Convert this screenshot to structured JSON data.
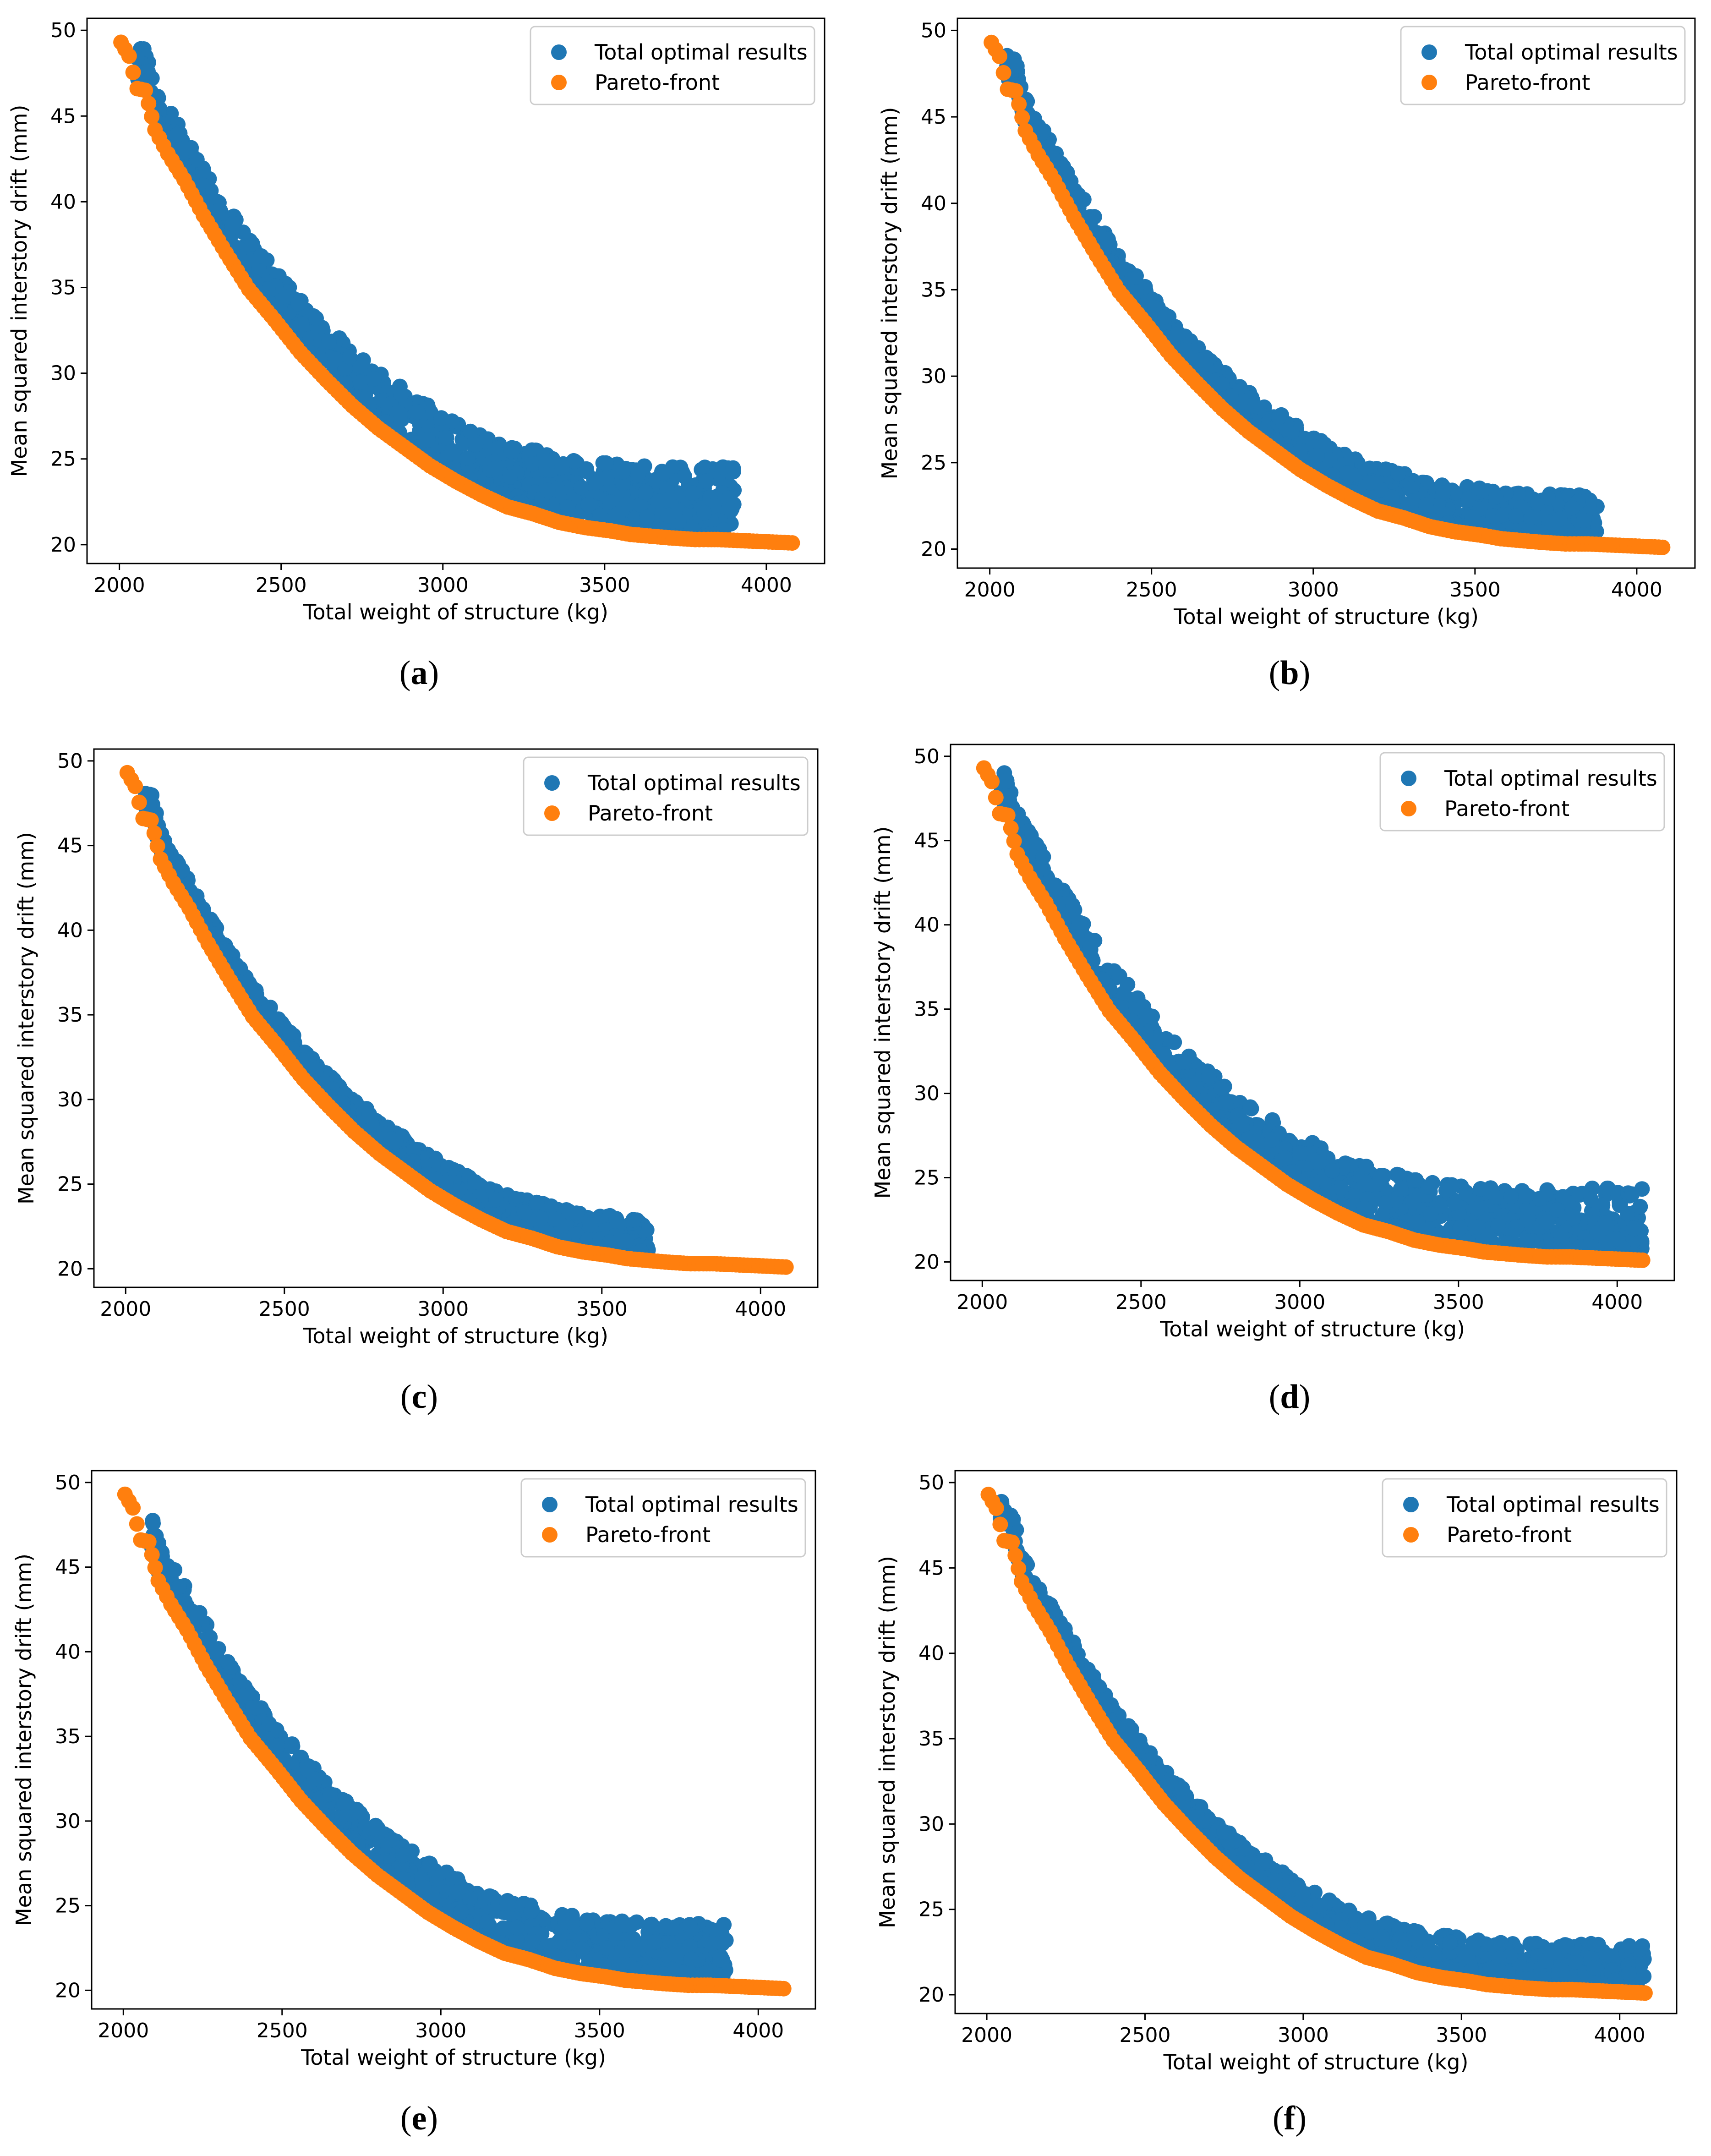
{
  "figure": {
    "colors": {
      "optimal": "#1f77b4",
      "pareto": "#ff7f0e",
      "axis": "#000000",
      "background": "#ffffff"
    },
    "legend_labels": {
      "optimal": "Total optimal results",
      "pareto": "Pareto-front"
    }
  },
  "chart_data": [
    {
      "type": "scatter",
      "panel": "a",
      "caption_open": "(",
      "caption_letter": "a",
      "caption_close": ")",
      "xlabel": "Total weight of structure (kg)",
      "ylabel": "Mean squared interstory drift (mm)",
      "xlim": [
        1900,
        4180
      ],
      "ylim": [
        18.9,
        50.7
      ],
      "xticks": [
        2000,
        2500,
        3000,
        3500,
        4000
      ],
      "yticks": [
        20,
        25,
        30,
        35,
        40,
        45,
        50
      ],
      "legend": "top-right",
      "series": [
        {
          "name": "Total optimal results",
          "color": "#1f77b4",
          "x_range": [
            2050,
            3900
          ],
          "spread": 4.0
        },
        {
          "name": "Pareto-front",
          "color": "#ff7f0e",
          "x": [
            2005,
            2030,
            2055,
            2080,
            2110,
            2150,
            2200,
            2260,
            2330,
            2400,
            2480,
            2560,
            2640,
            2720,
            2800,
            2880,
            2960,
            3040,
            3120,
            3200,
            3280,
            3360,
            3440,
            3520,
            3580,
            3640,
            3700,
            3780,
            3820,
            3850,
            4080
          ],
          "y": [
            49.3,
            48.5,
            46.6,
            46.5,
            44.2,
            42.8,
            41.3,
            39.2,
            37.0,
            34.9,
            33.1,
            31.2,
            29.6,
            28.1,
            26.8,
            25.7,
            24.6,
            23.7,
            22.9,
            22.2,
            21.8,
            21.3,
            21.0,
            20.8,
            20.6,
            20.5,
            20.4,
            20.3,
            20.3,
            20.3,
            20.1
          ]
        }
      ]
    },
    {
      "type": "scatter",
      "panel": "b",
      "caption_open": "(",
      "caption_letter": "b",
      "caption_close": ")",
      "xlabel": "Total weight of structure (kg)",
      "ylabel": "Mean squared interstory drift (mm)",
      "xlim": [
        1900,
        4180
      ],
      "ylim": [
        18.9,
        50.7
      ],
      "xticks": [
        2000,
        2500,
        3000,
        3500,
        4000
      ],
      "yticks": [
        20,
        25,
        30,
        35,
        40,
        45,
        50
      ],
      "legend": "top-right",
      "series": [
        {
          "name": "Total optimal results",
          "color": "#1f77b4",
          "x_range": [
            2050,
            3880
          ],
          "spread": 2.6
        },
        {
          "name": "Pareto-front",
          "color": "#ff7f0e",
          "x": [
            2005,
            2030,
            2055,
            2080,
            2110,
            2150,
            2200,
            2260,
            2330,
            2400,
            2480,
            2560,
            2640,
            2720,
            2800,
            2880,
            2960,
            3040,
            3120,
            3200,
            3280,
            3360,
            3440,
            3520,
            3580,
            3640,
            3700,
            3780,
            3820,
            3850,
            4080
          ],
          "y": [
            49.3,
            48.5,
            46.6,
            46.5,
            44.2,
            42.8,
            41.3,
            39.2,
            37.0,
            34.9,
            33.1,
            31.2,
            29.6,
            28.1,
            26.8,
            25.7,
            24.6,
            23.7,
            22.9,
            22.2,
            21.8,
            21.3,
            21.0,
            20.8,
            20.6,
            20.5,
            20.4,
            20.3,
            20.3,
            20.3,
            20.1
          ]
        }
      ]
    },
    {
      "type": "scatter",
      "panel": "c",
      "caption_open": "(",
      "caption_letter": "c",
      "caption_close": ")",
      "xlabel": "Total weight of structure (kg)",
      "ylabel": "Mean squared interstory drift (mm)",
      "xlim": [
        1900,
        4180
      ],
      "ylim": [
        18.9,
        50.7
      ],
      "xticks": [
        2000,
        2500,
        3000,
        3500,
        4000
      ],
      "yticks": [
        20,
        25,
        30,
        35,
        40,
        45,
        50
      ],
      "legend": "top-right",
      "series": [
        {
          "name": "Total optimal results",
          "color": "#1f77b4",
          "x_range": [
            2060,
            3650
          ],
          "spread": 2.2
        },
        {
          "name": "Pareto-front",
          "color": "#ff7f0e",
          "x": [
            2005,
            2030,
            2055,
            2080,
            2110,
            2150,
            2200,
            2260,
            2330,
            2400,
            2480,
            2560,
            2640,
            2720,
            2800,
            2880,
            2960,
            3040,
            3120,
            3200,
            3280,
            3360,
            3440,
            3520,
            3580,
            3640,
            3700,
            3780,
            3820,
            3850,
            4080
          ],
          "y": [
            49.3,
            48.5,
            46.6,
            46.5,
            44.2,
            42.8,
            41.3,
            39.2,
            37.0,
            34.9,
            33.1,
            31.2,
            29.6,
            28.1,
            26.8,
            25.7,
            24.6,
            23.7,
            22.9,
            22.2,
            21.8,
            21.3,
            21.0,
            20.8,
            20.6,
            20.5,
            20.4,
            20.3,
            20.3,
            20.3,
            20.1
          ]
        }
      ]
    },
    {
      "type": "scatter",
      "panel": "d",
      "caption_open": "(",
      "caption_letter": "d",
      "caption_close": ")",
      "xlabel": "Total weight of structure (kg)",
      "ylabel": "Mean squared interstory drift (mm)",
      "xlim": [
        1900,
        4180
      ],
      "ylim": [
        18.9,
        50.7
      ],
      "xticks": [
        2000,
        2500,
        3000,
        3500,
        4000
      ],
      "yticks": [
        20,
        25,
        30,
        35,
        40,
        45,
        50
      ],
      "legend": "top-right",
      "series": [
        {
          "name": "Total optimal results",
          "color": "#1f77b4",
          "x_range": [
            2060,
            4080
          ],
          "spread": 3.8
        },
        {
          "name": "Pareto-front",
          "color": "#ff7f0e",
          "x": [
            2005,
            2030,
            2055,
            2080,
            2110,
            2150,
            2200,
            2260,
            2330,
            2400,
            2480,
            2560,
            2640,
            2720,
            2800,
            2880,
            2960,
            3040,
            3120,
            3200,
            3280,
            3360,
            3440,
            3520,
            3580,
            3640,
            3700,
            3780,
            3820,
            3850,
            4080
          ],
          "y": [
            49.3,
            48.5,
            46.6,
            46.5,
            44.2,
            42.8,
            41.3,
            39.2,
            37.0,
            34.9,
            33.1,
            31.2,
            29.6,
            28.1,
            26.8,
            25.7,
            24.6,
            23.7,
            22.9,
            22.2,
            21.8,
            21.3,
            21.0,
            20.8,
            20.6,
            20.5,
            20.4,
            20.3,
            20.3,
            20.3,
            20.1
          ]
        }
      ]
    },
    {
      "type": "scatter",
      "panel": "e",
      "caption_open": "(",
      "caption_letter": "e",
      "caption_close": ")",
      "xlabel": "Total weight of structure (kg)",
      "ylabel": "Mean squared interstory drift (mm)",
      "xlim": [
        1900,
        4180
      ],
      "ylim": [
        18.9,
        50.7
      ],
      "xticks": [
        2000,
        2500,
        3000,
        3500,
        4000
      ],
      "yticks": [
        20,
        25,
        30,
        35,
        40,
        45,
        50
      ],
      "legend": "top-right",
      "series": [
        {
          "name": "Total optimal results",
          "color": "#1f77b4",
          "x_range": [
            2090,
            3900
          ],
          "spread": 3.4
        },
        {
          "name": "Pareto-front",
          "color": "#ff7f0e",
          "x": [
            2005,
            2030,
            2055,
            2080,
            2110,
            2150,
            2200,
            2260,
            2330,
            2400,
            2480,
            2560,
            2640,
            2720,
            2800,
            2880,
            2960,
            3040,
            3120,
            3200,
            3280,
            3360,
            3440,
            3520,
            3580,
            3640,
            3700,
            3780,
            3820,
            3850,
            4080
          ],
          "y": [
            49.3,
            48.5,
            46.6,
            46.5,
            44.2,
            42.8,
            41.3,
            39.2,
            37.0,
            34.9,
            33.1,
            31.2,
            29.6,
            28.1,
            26.8,
            25.7,
            24.6,
            23.7,
            22.9,
            22.2,
            21.8,
            21.3,
            21.0,
            20.8,
            20.6,
            20.5,
            20.4,
            20.3,
            20.3,
            20.3,
            20.1
          ]
        }
      ]
    },
    {
      "type": "scatter",
      "panel": "f",
      "caption_open": "(",
      "caption_letter": "f",
      "caption_close": ")",
      "xlabel": "Total weight of structure (kg)",
      "ylabel": "Mean squared interstory drift (mm)",
      "xlim": [
        1900,
        4180
      ],
      "ylim": [
        18.9,
        50.7
      ],
      "xticks": [
        2000,
        2500,
        3000,
        3500,
        4000
      ],
      "yticks": [
        20,
        25,
        30,
        35,
        40,
        45,
        50
      ],
      "legend": "top-right",
      "series": [
        {
          "name": "Total optimal results",
          "color": "#1f77b4",
          "x_range": [
            2040,
            4080
          ],
          "spread": 2.4
        },
        {
          "name": "Pareto-front",
          "color": "#ff7f0e",
          "x": [
            2005,
            2030,
            2055,
            2080,
            2110,
            2150,
            2200,
            2260,
            2330,
            2400,
            2480,
            2560,
            2640,
            2720,
            2800,
            2880,
            2960,
            3040,
            3120,
            3200,
            3280,
            3360,
            3440,
            3520,
            3580,
            3640,
            3700,
            3780,
            3820,
            3850,
            4080
          ],
          "y": [
            49.3,
            48.5,
            46.6,
            46.5,
            44.2,
            42.8,
            41.3,
            39.2,
            37.0,
            34.9,
            33.1,
            31.2,
            29.6,
            28.1,
            26.8,
            25.7,
            24.6,
            23.7,
            22.9,
            22.2,
            21.8,
            21.3,
            21.0,
            20.8,
            20.6,
            20.5,
            20.4,
            20.3,
            20.3,
            20.3,
            20.1
          ]
        }
      ]
    }
  ]
}
